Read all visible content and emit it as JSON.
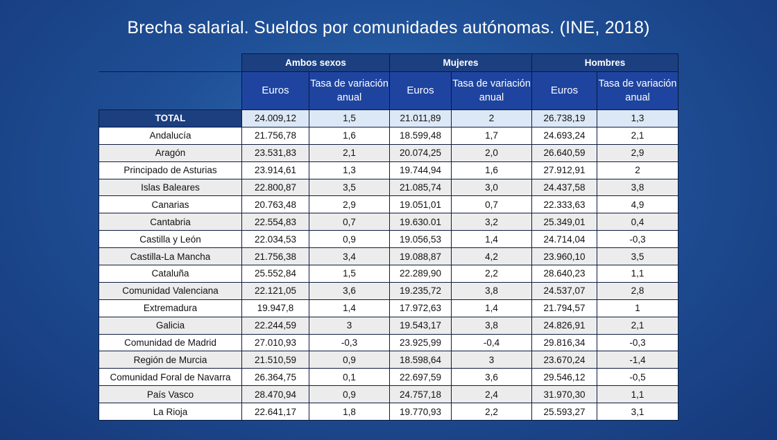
{
  "title": "Brecha salarial. Sueldos por comunidades autónomas. (INE, 2018)",
  "chart_data": {
    "type": "table",
    "title": "Brecha salarial. Sueldos por comunidades autónomas. (INE, 2018)",
    "groups": [
      "Ambos sexos",
      "Mujeres",
      "Hombres"
    ],
    "subheaders": [
      "Euros",
      "Tasa de variación anual",
      "Euros",
      "Tasa de variación anual",
      "Euros",
      "Tasa de variación anual"
    ],
    "rows": [
      {
        "region": "TOTAL",
        "values": [
          "24.009,12",
          "1,5",
          "21.011,89",
          "2",
          "26.738,19",
          "1,3"
        ]
      },
      {
        "region": "Andalucía",
        "values": [
          "21.756,78",
          "1,6",
          "18.599,48",
          "1,7",
          "24.693,24",
          "2,1"
        ]
      },
      {
        "region": "Aragón",
        "values": [
          "23.531,83",
          "2,1",
          "20.074,25",
          "2,0",
          "26.640,59",
          "2,9"
        ]
      },
      {
        "region": "Principado de Asturias",
        "values": [
          "23.914,61",
          "1,3",
          "19.744,94",
          "1,6",
          "27.912,91",
          "2"
        ]
      },
      {
        "region": "Islas Baleares",
        "values": [
          "22.800,87",
          "3,5",
          "21.085,74",
          "3,0",
          "24.437,58",
          "3,8"
        ]
      },
      {
        "region": "Canarias",
        "values": [
          "20.763,48",
          "2,9",
          "19.051,01",
          "0,7",
          "22.333,63",
          "4,9"
        ]
      },
      {
        "region": "Cantabria",
        "values": [
          "22.554,83",
          "0,7",
          "19.630.01",
          "3,2",
          "25.349,01",
          "0,4"
        ]
      },
      {
        "region": "Castilla y León",
        "values": [
          "22.034,53",
          "0,9",
          "19.056,53",
          "1,4",
          "24.714,04",
          "-0,3"
        ]
      },
      {
        "region": "Castilla-La Mancha",
        "values": [
          "21.756,38",
          "3,4",
          "19.088,87",
          "4,2",
          "23.960,10",
          "3,5"
        ]
      },
      {
        "region": "Cataluña",
        "values": [
          "25.552,84",
          "1,5",
          "22.289,90",
          "2,2",
          "28.640,23",
          "1,1"
        ]
      },
      {
        "region": "Comunidad Valenciana",
        "values": [
          "22.121,05",
          "3,6",
          "19.235,72",
          "3,8",
          "24.537,07",
          "2,8"
        ]
      },
      {
        "region": "Extremadura",
        "values": [
          "19.947,8",
          "1,4",
          "17.972,63",
          "1,4",
          "21.794,57",
          "1"
        ]
      },
      {
        "region": "Galicia",
        "values": [
          "22.244,59",
          "3",
          "19.543,17",
          "3,8",
          "24.826,91",
          "2,1"
        ]
      },
      {
        "region": "Comunidad de Madrid",
        "values": [
          "27.010,93",
          "-0,3",
          "23.925,99",
          "-0,4",
          "29.816,34",
          "-0,3"
        ]
      },
      {
        "region": "Región de Murcia",
        "values": [
          "21.510,59",
          "0,9",
          "18.598,64",
          "3",
          "23.670,24",
          "-1,4"
        ]
      },
      {
        "region": "Comunidad Foral de Navarra",
        "values": [
          "26.364,75",
          "0,1",
          "22.697,59",
          "3,6",
          "29.546,12",
          "-0,5"
        ]
      },
      {
        "region": "País Vasco",
        "values": [
          "28.470,94",
          "0,9",
          "24.757,18",
          "2,4",
          "31.970,30",
          "1,1"
        ]
      },
      {
        "region": "La Rioja",
        "values": [
          "22.641,17",
          "1,8",
          "19.770,93",
          "2,2",
          "25.593,27",
          "3,1"
        ]
      }
    ]
  }
}
